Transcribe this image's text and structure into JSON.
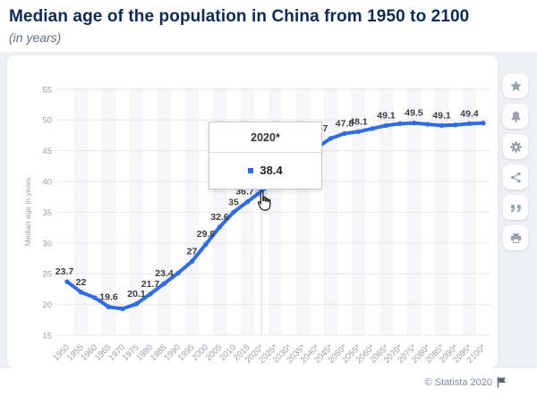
{
  "header": {
    "title": "Median age of the population in China from 1950 to 2100",
    "subtitle": "(in years)"
  },
  "chart_data": {
    "type": "line",
    "title": "Median age of the population in China from 1950 to 2100",
    "subtitle": "(in years)",
    "ylabel": "Median age in years",
    "ylim": [
      15,
      55
    ],
    "yticks": [
      15,
      20,
      25,
      30,
      35,
      40,
      45,
      50,
      55
    ],
    "grid": true,
    "legend": "none",
    "line_color": "#2e6be4",
    "x": [
      "1950",
      "1955",
      "1960",
      "1965",
      "1970",
      "1975",
      "1980",
      "1985",
      "1990",
      "1995",
      "2000",
      "2005",
      "2010",
      "2015",
      "2020*",
      "2025*",
      "2030*",
      "2035*",
      "2040*",
      "2045*",
      "2050*",
      "2055*",
      "2060*",
      "2065*",
      "2070*",
      "2075*",
      "2080*",
      "2085*",
      "2090*",
      "2095*",
      "2100*"
    ],
    "values": [
      23.7,
      22,
      21.1,
      19.6,
      19.3,
      20.1,
      21.7,
      23.4,
      25.1,
      27,
      29.8,
      32.6,
      35,
      36.7,
      38.4,
      40.2,
      42,
      43.9,
      45.5,
      47,
      47.8,
      48.1,
      48.6,
      49.1,
      49.4,
      49.5,
      49.3,
      49.1,
      49.2,
      49.4,
      49.5
    ],
    "labels_shown": [
      "23.7",
      "22",
      null,
      "19.6",
      null,
      "20.1",
      "21.7",
      "23.4",
      null,
      "27",
      "29.8",
      "32.6",
      "35",
      "36.7",
      null,
      null,
      null,
      null,
      null,
      "47",
      "47.8",
      "48.1",
      null,
      "49.1",
      null,
      "49.5",
      null,
      "49.1",
      null,
      "49.4",
      null
    ],
    "label_dx": {
      "0": -3,
      "13": -3,
      "19": -9
    },
    "hover_index": 14
  },
  "tooltip": {
    "title": "2020*",
    "value": "38.4"
  },
  "sidebar": {
    "buttons": [
      "favorite",
      "notifications",
      "settings",
      "share",
      "citation",
      "print"
    ]
  },
  "footer": {
    "attribution": "© Statista 2020"
  }
}
